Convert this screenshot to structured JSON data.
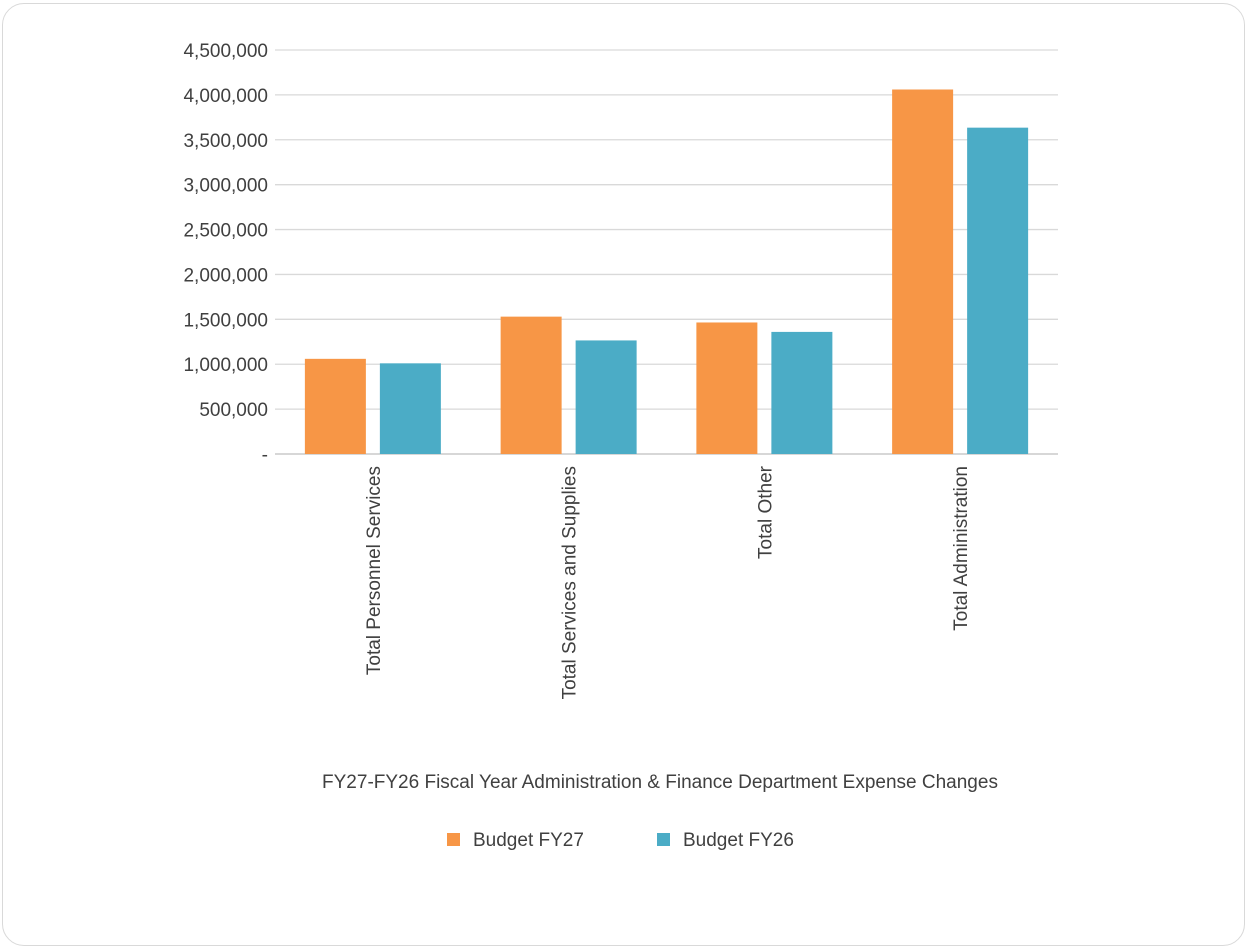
{
  "chart_data": {
    "type": "bar",
    "categories": [
      "Total Personnel Services",
      "Total Services and Supplies",
      "Total Other",
      "Total Administration"
    ],
    "series": [
      {
        "name": "Budget FY27",
        "color": "#f79646",
        "values": [
          1060000,
          1530000,
          1465000,
          4060000
        ]
      },
      {
        "name": "Budget FY26",
        "color": "#4bacc6",
        "values": [
          1010000,
          1265000,
          1360000,
          3635000
        ]
      }
    ],
    "ylim": [
      0,
      4500000
    ],
    "yticks": [
      0,
      500000,
      1000000,
      1500000,
      2000000,
      2500000,
      3000000,
      3500000,
      4000000,
      4500000
    ],
    "ytick_labels": [
      "-",
      "500,000",
      "1,000,000",
      "1,500,000",
      "2,000,000",
      "2,500,000",
      "3,000,000",
      "3,500,000",
      "4,000,000",
      "4,500,000"
    ],
    "xlabel": "FY27-FY26 Fiscal Year Administration & Finance Department Expense Changes",
    "ylabel": "",
    "title": "",
    "grid": true,
    "legend": "bottom"
  }
}
